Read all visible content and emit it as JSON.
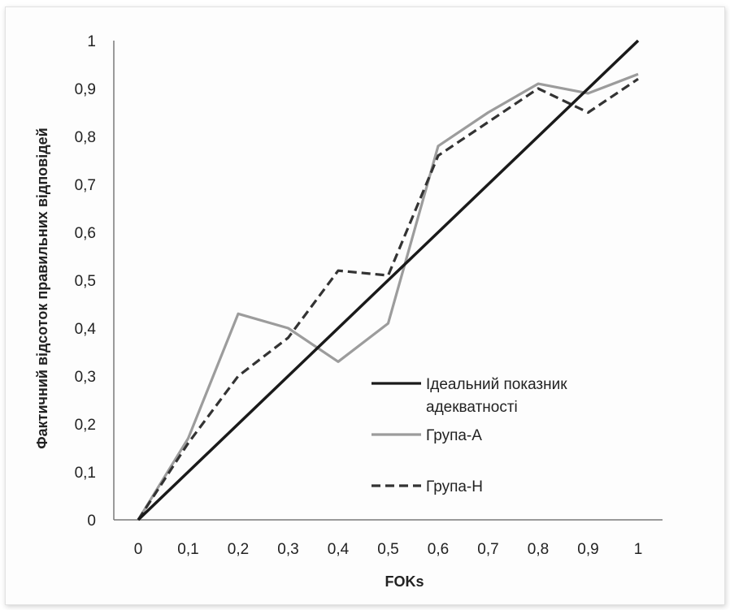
{
  "chart_data": {
    "type": "line",
    "title": "",
    "xlabel": "FOKs",
    "ylabel": "Фактичний відсоток правильних відповідей",
    "x": [
      0,
      0.1,
      0.2,
      0.3,
      0.4,
      0.5,
      0.6,
      0.7,
      0.8,
      0.9,
      1
    ],
    "x_tick_labels": [
      "0",
      "0,1",
      "0,2",
      "0,3",
      "0,4",
      "0,5",
      "0,6",
      "0,7",
      "0,8",
      "0,9",
      "1"
    ],
    "y_tick_labels": [
      "0",
      "0,1",
      "0,2",
      "0,3",
      "0,4",
      "0,5",
      "0,6",
      "0,7",
      "0,8",
      "0,9",
      "1"
    ],
    "ylim": [
      0,
      1
    ],
    "grid": false,
    "legend_position": "bottom-right inside plot",
    "series": [
      {
        "name": "Ідеальний показник адекватності",
        "legend_lines": [
          "Ідеальний показник",
          "адекватності"
        ],
        "values": [
          0,
          0.1,
          0.2,
          0.3,
          0.4,
          0.5,
          0.6,
          0.7,
          0.8,
          0.9,
          1
        ],
        "color": "#1a1a1a",
        "style": "solid"
      },
      {
        "name": "Група-А",
        "legend_lines": [
          "Група-А"
        ],
        "values": [
          0,
          0.17,
          0.43,
          0.4,
          0.33,
          0.41,
          0.78,
          0.85,
          0.91,
          0.89,
          0.93
        ],
        "color": "#9c9c9c",
        "style": "solid"
      },
      {
        "name": "Група-Н",
        "legend_lines": [
          "Група-Н"
        ],
        "values": [
          0,
          0.16,
          0.3,
          0.38,
          0.52,
          0.51,
          0.76,
          0.83,
          0.9,
          0.85,
          0.92
        ],
        "color": "#333333",
        "style": "dashed"
      }
    ]
  }
}
